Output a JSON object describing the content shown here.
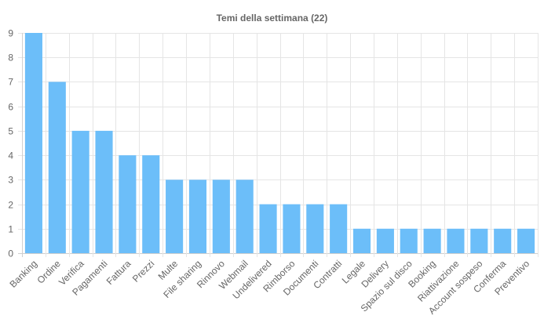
{
  "chart_data": {
    "type": "bar",
    "title": "Temi della settimana (22)",
    "xlabel": "",
    "ylabel": "",
    "ylim": [
      0,
      9
    ],
    "yticks": [
      0,
      1,
      2,
      3,
      4,
      5,
      6,
      7,
      8,
      9
    ],
    "grid": true,
    "legend": "none",
    "bar_color": "#6cbef9",
    "grid_color": "#e5e5e5",
    "text_color": "#666666",
    "categories": [
      "Banking",
      "Ordine",
      "Verifica",
      "Pagamenti",
      "Fattura",
      "Prezzi",
      "Multe",
      "File sharing",
      "Rinnovo",
      "Webmail",
      "Undelivered",
      "Rimborso",
      "Documenti",
      "Contratti",
      "Legale",
      "Delivery",
      "Spazio sul disco",
      "Booking",
      "Riattivazione",
      "Account sospeso",
      "Conferma",
      "Preventivo"
    ],
    "values": [
      9,
      7,
      5,
      5,
      4,
      4,
      3,
      3,
      3,
      3,
      2,
      2,
      2,
      2,
      1,
      1,
      1,
      1,
      1,
      1,
      1,
      1
    ]
  }
}
